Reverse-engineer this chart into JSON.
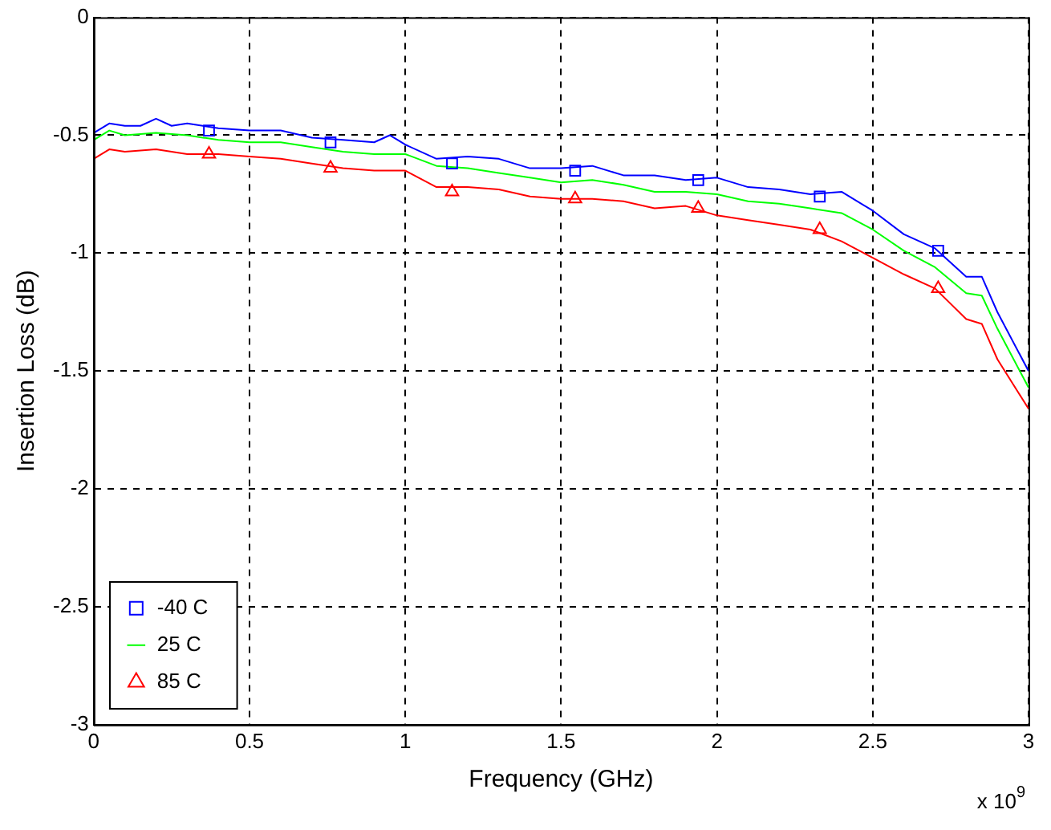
{
  "chart_data": {
    "type": "line",
    "xlabel": "Frequency (GHz)",
    "ylabel": "Insertion Loss (dB)",
    "xlim": [
      0,
      3
    ],
    "xticks": [
      0,
      0.5,
      1,
      1.5,
      2,
      2.5,
      3
    ],
    "ylim": [
      -3,
      0
    ],
    "yticks": [
      -3,
      -2.5,
      -2,
      -1.5,
      -1,
      -0.5,
      0
    ],
    "grid": true,
    "legend": "bottom left",
    "annotations": [
      "x 10$^{9}$"
    ],
    "series": [
      {
        "type": "scatter",
        "name": "-40 C",
        "color": "#0000ff",
        "marker": "square",
        "x": [
          0.37,
          0.76,
          1.15,
          1.545,
          1.94,
          2.33,
          2.71
        ],
        "values": [
          -0.48,
          -0.53,
          -0.62,
          -0.65,
          -0.69,
          -0.76,
          -0.99
        ]
      },
      {
        "type": "line",
        "color": "#0000ff",
        "marker": "none",
        "x": [
          0,
          0.05,
          0.1,
          0.15,
          0.2,
          0.25,
          0.3,
          0.4,
          0.5,
          0.6,
          0.7,
          0.8,
          0.9,
          0.95,
          1.0,
          1.1,
          1.2,
          1.3,
          1.4,
          1.5,
          1.6,
          1.7,
          1.8,
          1.9,
          2.0,
          2.1,
          2.2,
          2.3,
          2.4,
          2.5,
          2.6,
          2.7,
          2.8,
          2.85,
          2.9,
          3.0
        ],
        "values": [
          -0.49,
          -0.45,
          -0.46,
          -0.46,
          -0.43,
          -0.46,
          -0.45,
          -0.47,
          -0.48,
          -0.48,
          -0.51,
          -0.52,
          -0.53,
          -0.5,
          -0.54,
          -0.6,
          -0.59,
          -0.6,
          -0.64,
          -0.64,
          -0.63,
          -0.67,
          -0.67,
          -0.69,
          -0.68,
          -0.72,
          -0.73,
          -0.75,
          -0.74,
          -0.82,
          -0.92,
          -0.98,
          -1.1,
          -1.1,
          -1.25,
          -1.5
        ]
      },
      {
        "type": "line",
        "name": "25 C",
        "color": "#00ff00",
        "marker": "none",
        "x": [
          0,
          0.05,
          0.1,
          0.2,
          0.3,
          0.4,
          0.5,
          0.6,
          0.7,
          0.8,
          0.9,
          1.0,
          1.1,
          1.2,
          1.3,
          1.4,
          1.5,
          1.6,
          1.7,
          1.8,
          1.9,
          2.0,
          2.1,
          2.2,
          2.3,
          2.4,
          2.5,
          2.6,
          2.7,
          2.8,
          2.85,
          2.9,
          3.0
        ],
        "values": [
          -0.52,
          -0.48,
          -0.5,
          -0.49,
          -0.5,
          -0.52,
          -0.53,
          -0.53,
          -0.55,
          -0.57,
          -0.58,
          -0.58,
          -0.63,
          -0.64,
          -0.66,
          -0.68,
          -0.7,
          -0.69,
          -0.71,
          -0.74,
          -0.74,
          -0.75,
          -0.78,
          -0.79,
          -0.81,
          -0.83,
          -0.9,
          -0.99,
          -1.06,
          -1.17,
          -1.18,
          -1.32,
          -1.57
        ]
      },
      {
        "type": "scatter",
        "name": "85 C",
        "color": "#ff0000",
        "marker": "triangle",
        "x": [
          0.37,
          0.76,
          1.15,
          1.545,
          1.94,
          2.33,
          2.71
        ],
        "values": [
          -0.58,
          -0.64,
          -0.74,
          -0.77,
          -0.81,
          -0.9,
          -1.15
        ]
      },
      {
        "type": "line",
        "color": "#ff0000",
        "marker": "none",
        "x": [
          0,
          0.05,
          0.1,
          0.2,
          0.3,
          0.4,
          0.5,
          0.6,
          0.7,
          0.8,
          0.9,
          1.0,
          1.1,
          1.2,
          1.3,
          1.4,
          1.5,
          1.6,
          1.7,
          1.8,
          1.9,
          2.0,
          2.1,
          2.2,
          2.3,
          2.4,
          2.5,
          2.6,
          2.7,
          2.8,
          2.85,
          2.9,
          3.0
        ],
        "values": [
          -0.6,
          -0.56,
          -0.57,
          -0.56,
          -0.58,
          -0.58,
          -0.59,
          -0.6,
          -0.62,
          -0.64,
          -0.65,
          -0.65,
          -0.72,
          -0.72,
          -0.73,
          -0.76,
          -0.77,
          -0.77,
          -0.78,
          -0.81,
          -0.8,
          -0.84,
          -0.86,
          -0.88,
          -0.9,
          -0.95,
          -1.02,
          -1.09,
          -1.15,
          -1.28,
          -1.3,
          -1.45,
          -1.66
        ]
      }
    ]
  }
}
